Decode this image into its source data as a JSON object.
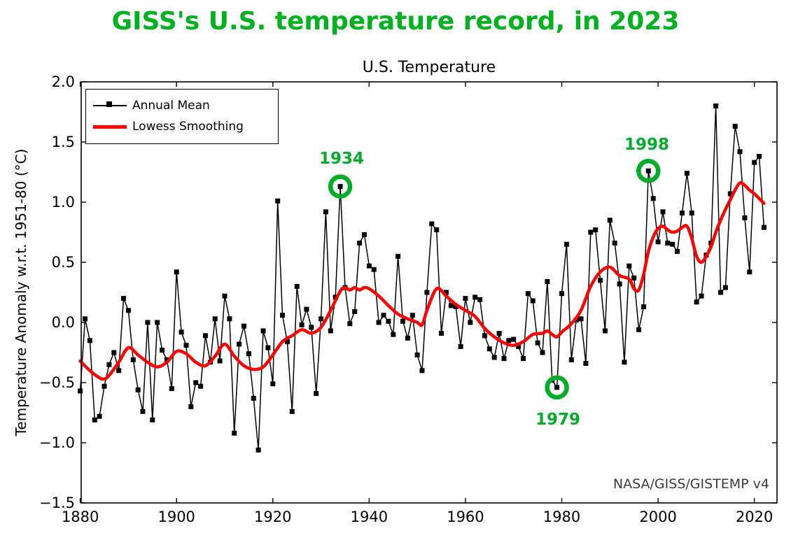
{
  "title": {
    "text": "GISS's U.S. temperature record, in 2023",
    "color": "#00B21E"
  },
  "subtitle": "U.S. Temperature",
  "y_axis_label": "Temperature Anomaly w.r.t. 1951-80 (°C)",
  "attribution": "NASA/GISS/GISTEMP v4",
  "legend": {
    "items": [
      {
        "label": "Annual Mean",
        "type": "line-marker",
        "color": "#000000"
      },
      {
        "label": "Lowess Smoothing",
        "type": "line",
        "color": "#FF0000"
      }
    ]
  },
  "chart_data": {
    "type": "line",
    "title": "U.S. Temperature",
    "xlabel": "",
    "ylabel": "Temperature Anomaly w.r.t. 1951-80 (°C)",
    "xlim": [
      1880.2,
      2024.7
    ],
    "ylim": [
      -1.5,
      2.0
    ],
    "x_ticks": [
      1880,
      1900,
      1920,
      1940,
      1960,
      1980,
      2000,
      2020
    ],
    "y_ticks": [
      2.0,
      1.5,
      1.0,
      0.5,
      0.0,
      -0.5,
      -1.0,
      -1.5
    ],
    "grid": false,
    "legend_position": "upper-left",
    "annotation_color": "#00AC28",
    "series": [
      {
        "name": "Annual Mean",
        "color": "#000000",
        "marker": "square",
        "x_range": [
          1880,
          2022
        ],
        "values": [
          -0.57,
          0.03,
          -0.15,
          -0.81,
          -0.78,
          -0.53,
          -0.35,
          -0.25,
          -0.4,
          0.2,
          0.1,
          -0.31,
          -0.56,
          -0.74,
          0.0,
          -0.81,
          0.0,
          -0.23,
          -0.31,
          -0.55,
          0.42,
          -0.08,
          -0.19,
          -0.7,
          -0.5,
          -0.53,
          -0.11,
          -0.33,
          0.03,
          -0.32,
          0.22,
          0.03,
          -0.92,
          -0.18,
          -0.03,
          -0.26,
          -0.63,
          -1.06,
          -0.07,
          -0.21,
          -0.51,
          1.01,
          0.06,
          -0.16,
          -0.74,
          0.3,
          -0.02,
          0.11,
          -0.04,
          -0.59,
          0.03,
          0.92,
          -0.07,
          0.21,
          1.13,
          0.29,
          -0.01,
          0.09,
          0.66,
          0.73,
          0.47,
          0.44,
          0.0,
          0.06,
          0.01,
          -0.1,
          0.55,
          0.01,
          -0.13,
          0.06,
          -0.27,
          -0.4,
          0.25,
          0.82,
          0.77,
          -0.09,
          0.25,
          0.14,
          0.13,
          -0.2,
          0.2,
          0.0,
          0.21,
          0.19,
          -0.11,
          -0.22,
          -0.29,
          -0.09,
          -0.3,
          -0.15,
          -0.14,
          -0.2,
          -0.3,
          0.24,
          0.18,
          -0.17,
          -0.25,
          0.34,
          -0.48,
          -0.54,
          0.24,
          0.65,
          -0.31,
          0.02,
          0.03,
          -0.34,
          0.75,
          0.77,
          0.35,
          -0.07,
          0.85,
          0.66,
          0.32,
          -0.33,
          0.47,
          0.37,
          -0.06,
          0.13,
          1.26,
          1.03,
          0.67,
          0.92,
          0.66,
          0.65,
          0.59,
          0.91,
          1.24,
          0.91,
          0.17,
          0.22,
          0.56,
          0.66,
          1.8,
          0.25,
          0.29,
          1.07,
          1.63,
          1.42,
          0.87,
          0.42,
          1.33,
          1.38,
          0.79
        ]
      },
      {
        "name": "Lowess Smoothing",
        "color": "#FF0000",
        "marker": "none",
        "points": [
          [
            1880,
            -0.32
          ],
          [
            1882,
            -0.4
          ],
          [
            1884,
            -0.46
          ],
          [
            1885,
            -0.47
          ],
          [
            1886,
            -0.44
          ],
          [
            1888,
            -0.33
          ],
          [
            1890,
            -0.21
          ],
          [
            1892,
            -0.27
          ],
          [
            1894,
            -0.33
          ],
          [
            1896,
            -0.37
          ],
          [
            1898,
            -0.33
          ],
          [
            1900,
            -0.24
          ],
          [
            1902,
            -0.26
          ],
          [
            1904,
            -0.33
          ],
          [
            1906,
            -0.36
          ],
          [
            1908,
            -0.28
          ],
          [
            1910,
            -0.18
          ],
          [
            1912,
            -0.28
          ],
          [
            1914,
            -0.36
          ],
          [
            1916,
            -0.39
          ],
          [
            1918,
            -0.37
          ],
          [
            1920,
            -0.27
          ],
          [
            1922,
            -0.16
          ],
          [
            1924,
            -0.11
          ],
          [
            1926,
            -0.06
          ],
          [
            1928,
            -0.09
          ],
          [
            1930,
            -0.04
          ],
          [
            1932,
            0.1
          ],
          [
            1934,
            0.26
          ],
          [
            1935,
            0.29
          ],
          [
            1936,
            0.27
          ],
          [
            1937,
            0.29
          ],
          [
            1938,
            0.27
          ],
          [
            1939,
            0.29
          ],
          [
            1940,
            0.28
          ],
          [
            1942,
            0.22
          ],
          [
            1944,
            0.14
          ],
          [
            1946,
            0.07
          ],
          [
            1948,
            0.03
          ],
          [
            1950,
            0.0
          ],
          [
            1951,
            -0.02
          ],
          [
            1952,
            0.1
          ],
          [
            1954,
            0.28
          ],
          [
            1956,
            0.22
          ],
          [
            1958,
            0.15
          ],
          [
            1960,
            0.1
          ],
          [
            1962,
            0.05
          ],
          [
            1964,
            -0.05
          ],
          [
            1966,
            -0.12
          ],
          [
            1968,
            -0.17
          ],
          [
            1970,
            -0.19
          ],
          [
            1972,
            -0.16
          ],
          [
            1974,
            -0.1
          ],
          [
            1976,
            -0.09
          ],
          [
            1977,
            -0.07
          ],
          [
            1978,
            -0.1
          ],
          [
            1979,
            -0.12
          ],
          [
            1980,
            -0.08
          ],
          [
            1982,
            -0.01
          ],
          [
            1984,
            0.1
          ],
          [
            1986,
            0.3
          ],
          [
            1988,
            0.42
          ],
          [
            1990,
            0.46
          ],
          [
            1992,
            0.39
          ],
          [
            1994,
            0.36
          ],
          [
            1995,
            0.28
          ],
          [
            1996,
            0.27
          ],
          [
            1997,
            0.4
          ],
          [
            1998,
            0.59
          ],
          [
            1999,
            0.71
          ],
          [
            2000,
            0.78
          ],
          [
            2001,
            0.8
          ],
          [
            2002,
            0.77
          ],
          [
            2003,
            0.75
          ],
          [
            2004,
            0.76
          ],
          [
            2005,
            0.79
          ],
          [
            2006,
            0.8
          ],
          [
            2007,
            0.7
          ],
          [
            2008,
            0.55
          ],
          [
            2009,
            0.5
          ],
          [
            2010,
            0.55
          ],
          [
            2011,
            0.63
          ],
          [
            2012,
            0.75
          ],
          [
            2013,
            0.85
          ],
          [
            2014,
            0.94
          ],
          [
            2015,
            1.02
          ],
          [
            2016,
            1.1
          ],
          [
            2017,
            1.16
          ],
          [
            2018,
            1.14
          ],
          [
            2019,
            1.1
          ],
          [
            2020,
            1.07
          ],
          [
            2021,
            1.03
          ],
          [
            2022,
            0.99
          ]
        ]
      }
    ],
    "annotations": [
      {
        "label": "1934",
        "year": 1934,
        "value": 1.13,
        "label_position": "above"
      },
      {
        "label": "1998",
        "year": 1998,
        "value": 1.26,
        "label_position": "above"
      },
      {
        "label": "1979",
        "year": 1979,
        "value": -0.54,
        "label_position": "below"
      }
    ]
  }
}
